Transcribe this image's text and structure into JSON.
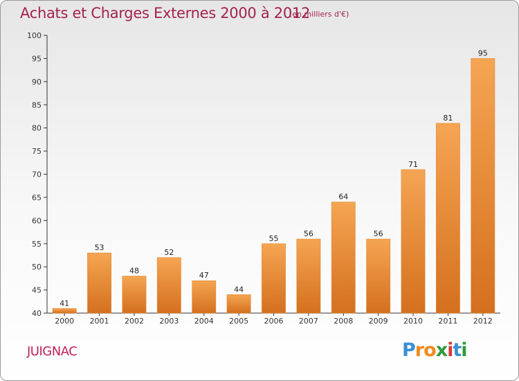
{
  "chart_data": {
    "type": "bar",
    "title": "Achats et Charges Externes 2000 à 2012",
    "subtitle": "(en milliers d'€)",
    "xlabel": "",
    "ylabel": "",
    "categories": [
      "2000",
      "2001",
      "2002",
      "2003",
      "2004",
      "2005",
      "2006",
      "2007",
      "2008",
      "2009",
      "2010",
      "2011",
      "2012"
    ],
    "values": [
      41,
      53,
      48,
      52,
      47,
      44,
      55,
      56,
      64,
      56,
      71,
      81,
      95
    ],
    "ylim": [
      40,
      100
    ],
    "yticks": [
      40,
      45,
      50,
      55,
      60,
      65,
      70,
      75,
      80,
      85,
      90,
      95,
      100
    ],
    "grid": false,
    "legend": "none",
    "bar_color_top": "#f5a552",
    "bar_color_bottom": "#d4701f",
    "bar_edge_color": "#e08a35"
  },
  "commune_name": "JUIGNAC",
  "logo": {
    "letters": [
      "P",
      "r",
      "o",
      "x",
      "i",
      "t",
      "i"
    ],
    "colors": [
      "#3a8fd6",
      "#f08a1c",
      "#f08a1c",
      "#2f9a3a",
      "#d63a3a",
      "#3a8fd6",
      "#2f9a3a"
    ]
  },
  "colors": {
    "title": "#a3224f",
    "axis": "#333333"
  }
}
